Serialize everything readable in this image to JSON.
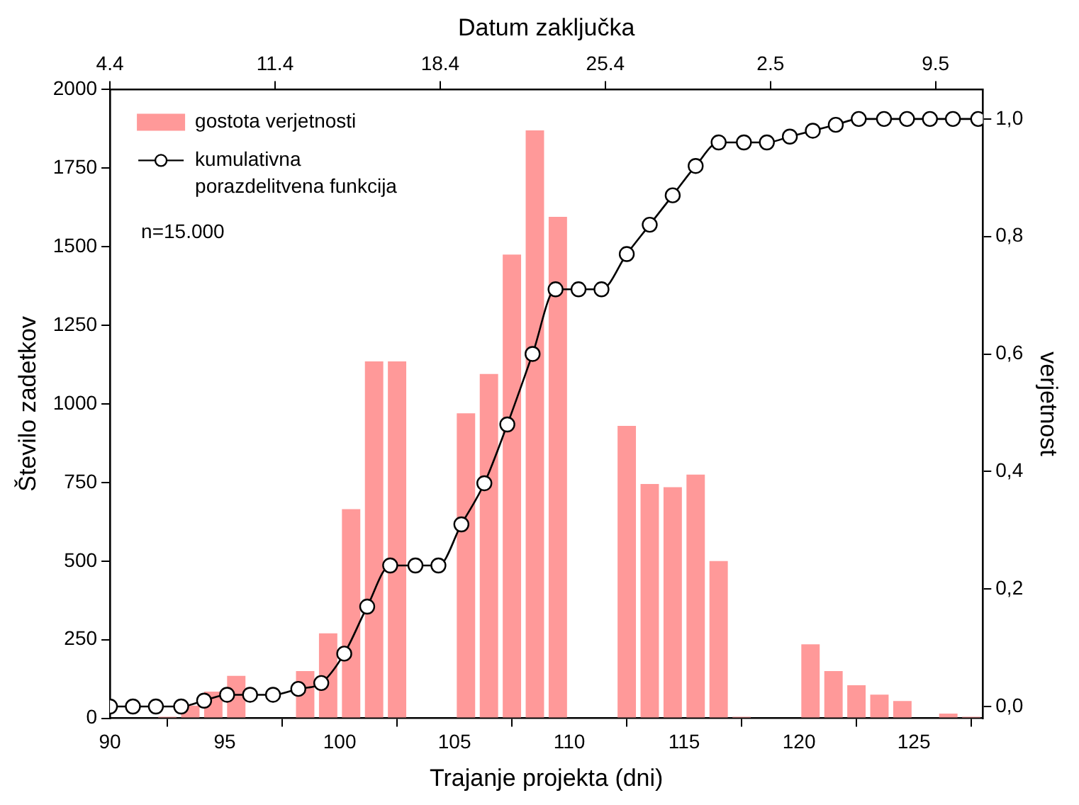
{
  "chart_data": {
    "type": "histogram",
    "xlabel": "Trajanje projekta (dni)",
    "ylabel": "Število zadetkov",
    "y2label": "verjetnost",
    "x2label": "Datum zaključka",
    "series": [
      {
        "name": "gostota verjetnosti",
        "color": "#ff9999",
        "bins": [
          92,
          93,
          94,
          95,
          96,
          97,
          98,
          99,
          100,
          101,
          102,
          103,
          104,
          105,
          106,
          107,
          108,
          109,
          110,
          111,
          112,
          113,
          114,
          115,
          116,
          117,
          118,
          119,
          120,
          121,
          122,
          123,
          124,
          125,
          126,
          127,
          128
        ],
        "values": [
          5,
          40,
          85,
          135,
          0,
          0,
          150,
          270,
          665,
          1135,
          1135,
          0,
          0,
          970,
          1095,
          1475,
          1870,
          1595,
          0,
          0,
          930,
          745,
          735,
          775,
          500,
          5,
          0,
          0,
          235,
          150,
          105,
          75,
          55,
          0,
          15,
          5
        ]
      },
      {
        "type": "line",
        "name": "kumulativna porazdelitvena funkcija",
        "color": "#000000",
        "axis": "y2",
        "x": [
          90,
          91,
          92,
          93.1,
          94.1,
          95.1,
          96.1,
          97.1,
          98.2,
          99.2,
          100.2,
          101.2,
          102.2,
          103.3,
          104.3,
          105.3,
          106.3,
          107.3,
          108.4,
          109.4,
          110.4,
          111.4,
          112.5,
          113.5,
          114.5,
          115.5,
          116.5,
          117.6,
          118.6,
          119.6,
          120.6,
          121.6,
          122.6,
          123.7,
          124.7,
          125.7,
          126.7,
          127.8
        ],
        "values": [
          0,
          0,
          0,
          0,
          0.01,
          0.02,
          0.02,
          0.02,
          0.03,
          0.04,
          0.09,
          0.17,
          0.24,
          0.24,
          0.24,
          0.31,
          0.38,
          0.48,
          0.6,
          0.71,
          0.71,
          0.71,
          0.77,
          0.82,
          0.87,
          0.92,
          0.96,
          0.96,
          0.96,
          0.97,
          0.98,
          0.99,
          1,
          1,
          1,
          1,
          1,
          1
        ]
      }
    ],
    "xlim": [
      90,
      128
    ],
    "xticks": [
      90,
      95,
      100,
      105,
      110,
      115,
      120,
      125
    ],
    "x2lim": [
      "--04-04",
      "--05-11"
    ],
    "x2ticks": [
      {
        "value": "--04-04",
        "label": "4.4"
      },
      {
        "value": "--04-11",
        "label": "11.4"
      },
      {
        "value": "--04-18",
        "label": "18.4"
      },
      {
        "value": "--04-25",
        "label": "25.4"
      },
      {
        "value": "--05-02",
        "label": "2.5"
      },
      {
        "value": "--05-09",
        "label": "9.5"
      }
    ],
    "ylim": [
      0,
      2000
    ],
    "yticks": [
      0,
      250,
      500,
      750,
      1000,
      1250,
      1500,
      1750,
      2000
    ],
    "y2lim": [
      -0.02,
      1.05
    ],
    "y2ticks": [
      {
        "value": 0,
        "label": "0,0"
      },
      {
        "value": 0.2,
        "label": "0,2"
      },
      {
        "value": 0.4,
        "label": "0,4"
      },
      {
        "value": 0.6,
        "label": "0,6"
      },
      {
        "value": 0.8,
        "label": "0,8"
      },
      {
        "value": 1,
        "label": "1,0"
      }
    ],
    "annotations": [
      "n=15.000"
    ],
    "grid": false,
    "legend": "top left",
    "marker": "circle",
    "line_style": "solid"
  }
}
